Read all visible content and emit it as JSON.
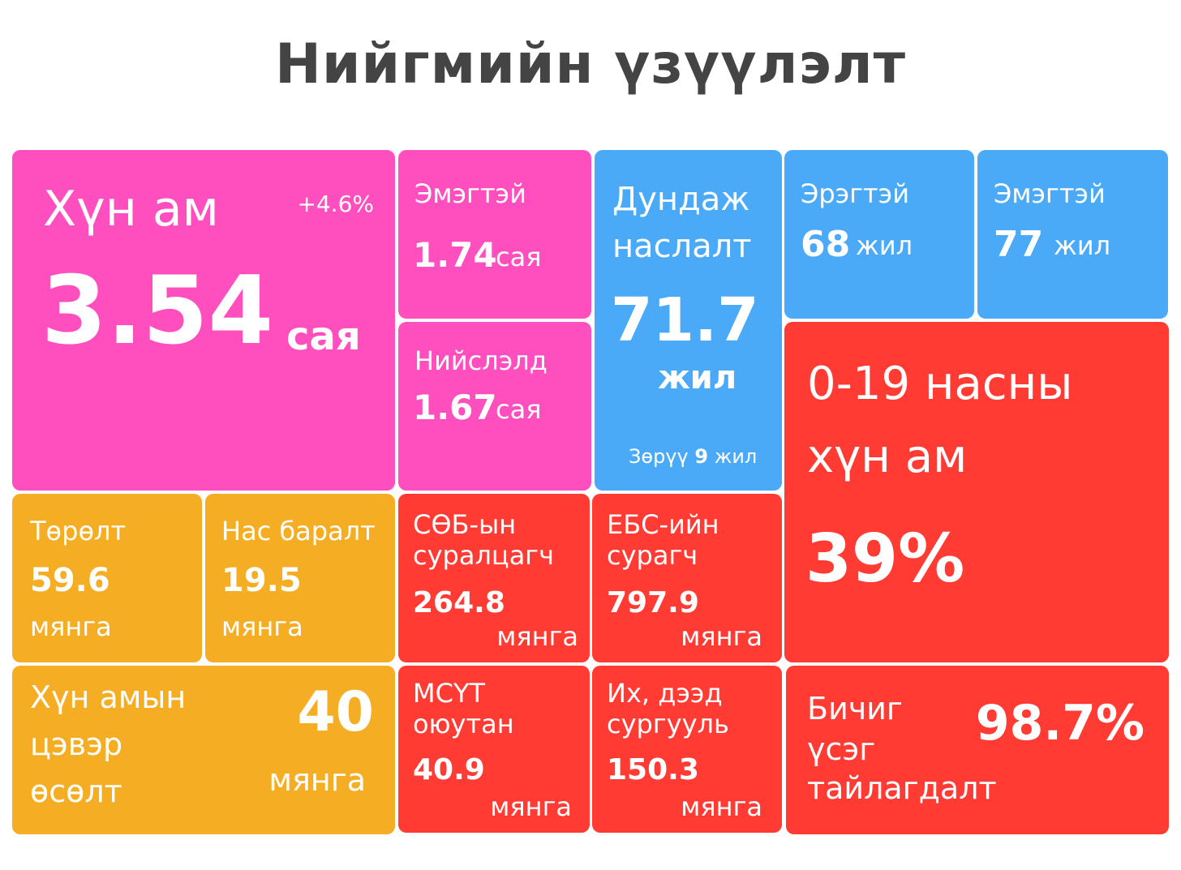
{
  "title": "Нийгмийн үзүүлэлт",
  "colors": {
    "pink": "#ff4fbf",
    "blue": "#4aaaf7",
    "red": "#ff3b33",
    "orange": "#f5ad24",
    "title": "#444444"
  },
  "population": {
    "label": "Хүн ам",
    "value": "3.54",
    "unit": "сая",
    "change": "+4.6%"
  },
  "female_pop": {
    "label": "Эмэгтэй",
    "value": "1.74",
    "unit": "сая"
  },
  "capital_pop": {
    "label": "Нийслэлд",
    "value": "1.67",
    "unit": "сая"
  },
  "life_expectancy": {
    "label_line1": "Дундаж",
    "label_line2": "наслалт",
    "value": "71.7",
    "unit": "жил",
    "gap_prefix": "Зөрүү",
    "gap_value": "9",
    "gap_unit": "жил"
  },
  "male_life": {
    "label": "Эрэгтэй",
    "value": "68",
    "unit": "жил"
  },
  "female_life": {
    "label": "Эмэгтэй",
    "value": "77",
    "unit": "жил"
  },
  "youth": {
    "label_line1": "0-19 насны",
    "label_line2": "хүн ам",
    "value": "39%"
  },
  "births": {
    "label": "Төрөлт",
    "value": "59.6",
    "unit": "мянга"
  },
  "deaths": {
    "label": "Нас баралт",
    "value": "19.5",
    "unit": "мянга"
  },
  "preschool": {
    "label_line1": "СӨБ-ын",
    "label_line2": "суралцагч",
    "value": "264.8",
    "unit": "мянга"
  },
  "school": {
    "label_line1": "ЕБС-ийн",
    "label_line2": "сурагч",
    "value": "797.9",
    "unit": "мянга"
  },
  "net_growth": {
    "label_line1": "Хүн амын",
    "label_line2": "цэвэр",
    "label_line3": "өсөлт",
    "value": "40",
    "unit": "мянга"
  },
  "tvet": {
    "label_line1": "МСҮТ",
    "label_line2": "оюутан",
    "value": "40.9",
    "unit": "мянга"
  },
  "higher_ed": {
    "label_line1": "Их, дээд",
    "label_line2": "сургууль",
    "value": "150.3",
    "unit": "мянга"
  },
  "literacy": {
    "label_line1": "Бичиг",
    "label_line2": "үсэг",
    "label_line3": "тайлагдалт",
    "value": "98.7%"
  }
}
